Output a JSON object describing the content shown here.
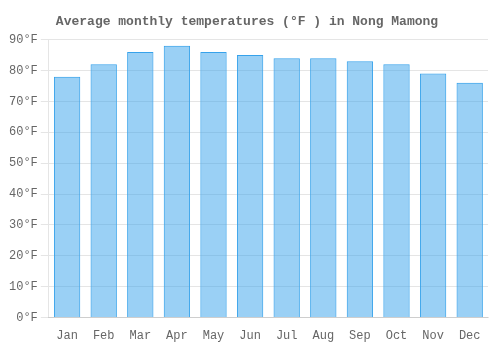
{
  "chart_data": {
    "type": "bar",
    "title": "Average monthly temperatures (°F ) in Nong Mamong",
    "categories": [
      "Jan",
      "Feb",
      "Mar",
      "Apr",
      "May",
      "Jun",
      "Jul",
      "Aug",
      "Sep",
      "Oct",
      "Nov",
      "Dec"
    ],
    "values": [
      78,
      82,
      86,
      88,
      86,
      85,
      84,
      84,
      83,
      82,
      79,
      76
    ],
    "ylim": [
      0,
      90
    ],
    "yticks": [
      {
        "value": 0,
        "label": "0°F"
      },
      {
        "value": 10,
        "label": "10°F"
      },
      {
        "value": 20,
        "label": "20°F"
      },
      {
        "value": 30,
        "label": "30°F"
      },
      {
        "value": 40,
        "label": "40°F"
      },
      {
        "value": 50,
        "label": "50°F"
      },
      {
        "value": 60,
        "label": "60°F"
      },
      {
        "value": 70,
        "label": "70°F"
      },
      {
        "value": 80,
        "label": "80°F"
      },
      {
        "value": 90,
        "label": "90°F"
      }
    ],
    "grid": true
  }
}
